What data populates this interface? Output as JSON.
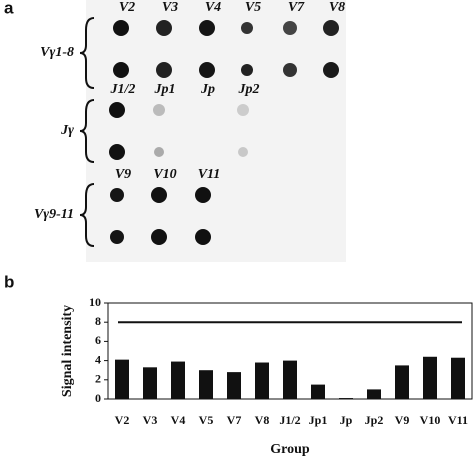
{
  "panel_a": {
    "label": "a",
    "groups": [
      {
        "name": "Vγ1-8",
        "columns": [
          "V2",
          "V3",
          "V4",
          "V5",
          "V7",
          "V8"
        ]
      },
      {
        "name": "Jγ",
        "columns": [
          "J1/2",
          "Jp1",
          "Jp",
          "Jp2"
        ]
      },
      {
        "name": "Vγ9-11",
        "columns": [
          "V9",
          "V10",
          "V11"
        ]
      }
    ]
  },
  "panel_b_label": "b",
  "chart_data": {
    "type": "bar",
    "categories": [
      "V2",
      "V3",
      "V4",
      "V5",
      "V7",
      "V8",
      "J1/2",
      "Jp1",
      "Jp",
      "Jp2",
      "V9",
      "V10",
      "V11"
    ],
    "values": [
      4.1,
      3.3,
      3.9,
      3.0,
      2.8,
      3.8,
      4.0,
      1.5,
      0.1,
      1.0,
      3.5,
      4.4,
      4.3
    ],
    "color": "#111111",
    "ylim": [
      0,
      10
    ],
    "yticks": [
      0,
      2,
      4,
      6,
      8,
      10
    ],
    "reference_line": 8,
    "y_label": "Signal intensity",
    "x_label": "Group"
  }
}
